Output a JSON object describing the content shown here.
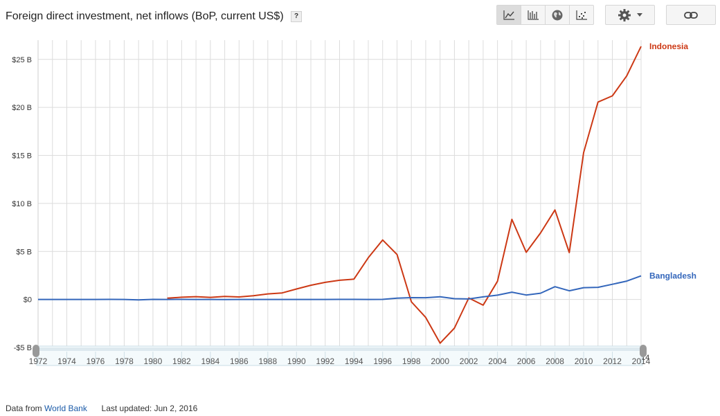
{
  "title": "Foreign direct investment, net inflows (BoP, current US$)",
  "help_label": "?",
  "toolbar": {
    "chart_types": [
      {
        "name": "line-chart-icon",
        "active": true
      },
      {
        "name": "bar-chart-icon",
        "active": false
      },
      {
        "name": "map-globe-icon",
        "active": false
      },
      {
        "name": "scatter-chart-icon",
        "active": false
      }
    ]
  },
  "colors": {
    "indonesia": "#cc3814",
    "bangladesh": "#3366bb",
    "grid": "#dcdcdc",
    "link": "#1a5aa8"
  },
  "chart_data": {
    "type": "line",
    "title": "Foreign direct investment, net inflows (BoP, current US$)",
    "xlabel": "",
    "ylabel": "",
    "xlim": [
      1972,
      2014
    ],
    "ylim": [
      -5,
      27
    ],
    "y_ticks": [
      -5,
      0,
      5,
      10,
      15,
      20,
      25
    ],
    "y_tick_labels": [
      "-$5 B",
      "$0",
      "$5 B",
      "$10 B",
      "$15 B",
      "$20 B",
      "$25 B"
    ],
    "x_ticks": [
      1974,
      1976,
      1978,
      1980,
      1982,
      1984,
      1986,
      1988,
      1990,
      1992,
      1994,
      1996,
      1998,
      2000,
      2002,
      2004,
      2006,
      2008,
      2010,
      2012,
      2014
    ],
    "x_tick_labels": [
      "1974",
      "1976",
      "1978",
      "1980",
      "1982",
      "1984",
      "1986",
      "1988",
      "1990",
      "1992",
      "1994",
      "1996",
      "1998",
      "2000",
      "2002",
      "2004",
      "2006",
      "2008",
      "2010",
      "2012",
      "2014"
    ],
    "grid": true,
    "legend": "right-inline",
    "series": [
      {
        "name": "Indonesia",
        "color": "#cc3814",
        "x": [
          1981,
          1982,
          1983,
          1984,
          1985,
          1986,
          1987,
          1988,
          1989,
          1990,
          1991,
          1992,
          1993,
          1994,
          1995,
          1996,
          1997,
          1998,
          1999,
          2000,
          2001,
          2002,
          2003,
          2004,
          2005,
          2006,
          2007,
          2008,
          2009,
          2010,
          2011,
          2012,
          2013,
          2014
        ],
        "y": [
          0.13,
          0.23,
          0.29,
          0.22,
          0.31,
          0.26,
          0.39,
          0.58,
          0.68,
          1.09,
          1.48,
          1.78,
          2.0,
          2.11,
          4.35,
          6.19,
          4.68,
          -0.24,
          -1.87,
          -4.55,
          -2.98,
          0.15,
          -0.6,
          1.9,
          8.34,
          4.91,
          6.93,
          9.32,
          4.88,
          15.29,
          20.56,
          21.2,
          23.28,
          26.35
        ]
      },
      {
        "name": "Bangladesh",
        "color": "#3366bb",
        "x": [
          1972,
          1973,
          1974,
          1975,
          1976,
          1977,
          1978,
          1979,
          1980,
          1981,
          1982,
          1983,
          1984,
          1985,
          1986,
          1987,
          1988,
          1989,
          1990,
          1991,
          1992,
          1993,
          1994,
          1995,
          1996,
          1997,
          1998,
          1999,
          2000,
          2001,
          2002,
          2003,
          2004,
          2005,
          2006,
          2007,
          2008,
          2009,
          2010,
          2011,
          2012,
          2013,
          2014
        ],
        "y": [
          0.0,
          0.0,
          0.0,
          0.0,
          0.0,
          0.01,
          0.0,
          -0.05,
          0.01,
          0.0,
          0.01,
          0.0,
          0.0,
          -0.01,
          0.0,
          0.0,
          0.0,
          0.0,
          0.0,
          0.0,
          0.0,
          0.01,
          0.01,
          0.0,
          0.01,
          0.14,
          0.19,
          0.18,
          0.28,
          0.08,
          0.05,
          0.27,
          0.45,
          0.76,
          0.46,
          0.65,
          1.33,
          0.9,
          1.23,
          1.26,
          1.58,
          1.91,
          2.45
        ]
      }
    ]
  },
  "range_slider": {
    "start": "1972",
    "end": "2014",
    "tick_labels": [
      "1972",
      "1974",
      "1976",
      "1978",
      "1980",
      "1982",
      "1984",
      "1986",
      "1988",
      "1990",
      "1992",
      "1994",
      "1996",
      "1998",
      "2000",
      "2002",
      "2004",
      "2006",
      "2008",
      "2010",
      "2012",
      "2014"
    ]
  },
  "footer": {
    "source_prefix": "Data from",
    "source_link": "World Bank",
    "updated": "Last updated: Jun 2, 2016"
  }
}
